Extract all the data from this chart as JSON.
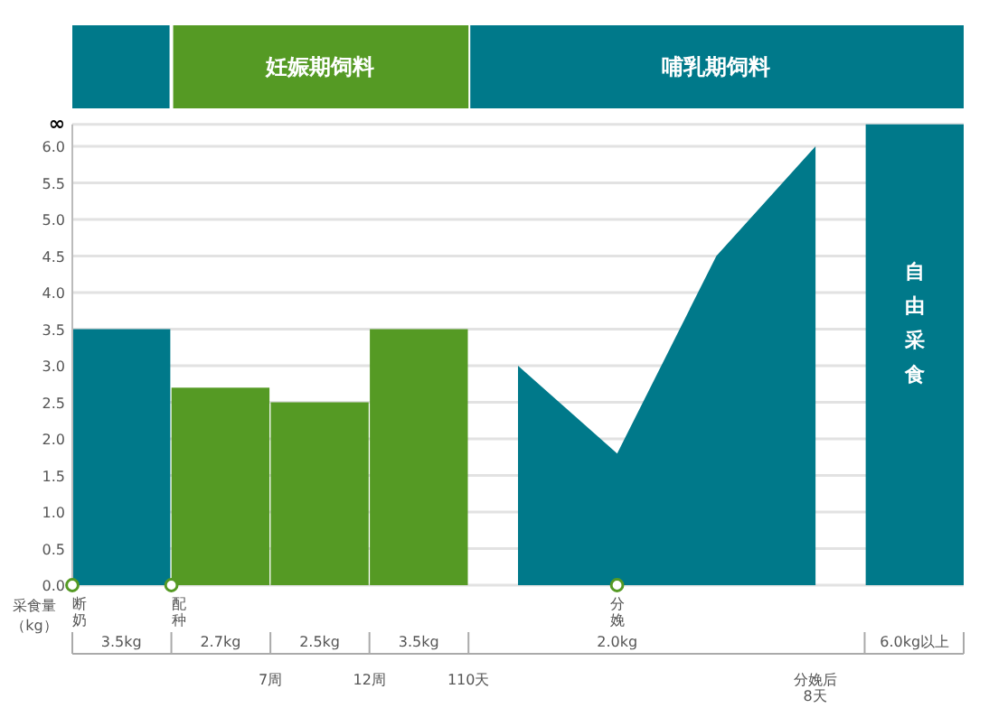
{
  "chart_data": {
    "type": "bar",
    "ylabel": "采食量（kg）",
    "categories": [
      "3.5kg",
      "2.7kg",
      "2.5kg",
      "3.5kg",
      null,
      "2.0kg",
      null,
      null,
      "6.0kg以上"
    ],
    "ylim": [
      0,
      6.3
    ],
    "yticks": [
      {
        "value": 0,
        "label": "0.0"
      },
      {
        "value": 0.5,
        "label": "0.5"
      },
      {
        "value": 1,
        "label": "1.0"
      },
      {
        "value": 1.5,
        "label": "1.5"
      },
      {
        "value": 2,
        "label": "2.0"
      },
      {
        "value": 2.5,
        "label": "2.5"
      },
      {
        "value": 3,
        "label": "3.0"
      },
      {
        "value": 3.5,
        "label": "3.5"
      },
      {
        "value": 4,
        "label": "4.0"
      },
      {
        "value": 4.5,
        "label": "4.5"
      },
      {
        "value": 5,
        "label": "5.0"
      },
      {
        "value": 5.5,
        "label": "5.5"
      },
      {
        "value": 6,
        "label": "6.0"
      },
      {
        "value": 6.3,
        "label": "∞"
      }
    ],
    "grid": "y",
    "series": [
      {
        "colors": [
          "#00798a",
          "#559a24",
          "#559a24",
          "#559a24",
          null,
          null,
          null,
          null,
          "#00798a"
        ],
        "values": [
          3.5,
          2.7,
          2.5,
          3.5,
          null,
          null,
          null,
          null,
          6.3
        ]
      },
      {
        "type": "area",
        "color": "#00798a",
        "values": [
          null,
          null,
          null,
          null,
          3.0,
          1.8,
          4.5,
          6.0,
          null
        ]
      }
    ],
    "annotations": [
      "妊娠期饲料",
      "哺乳期饲料",
      "断奶",
      "配种",
      "7周",
      "12周",
      "110天",
      "分娩",
      "分娩后8天",
      "自由采食"
    ]
  }
}
